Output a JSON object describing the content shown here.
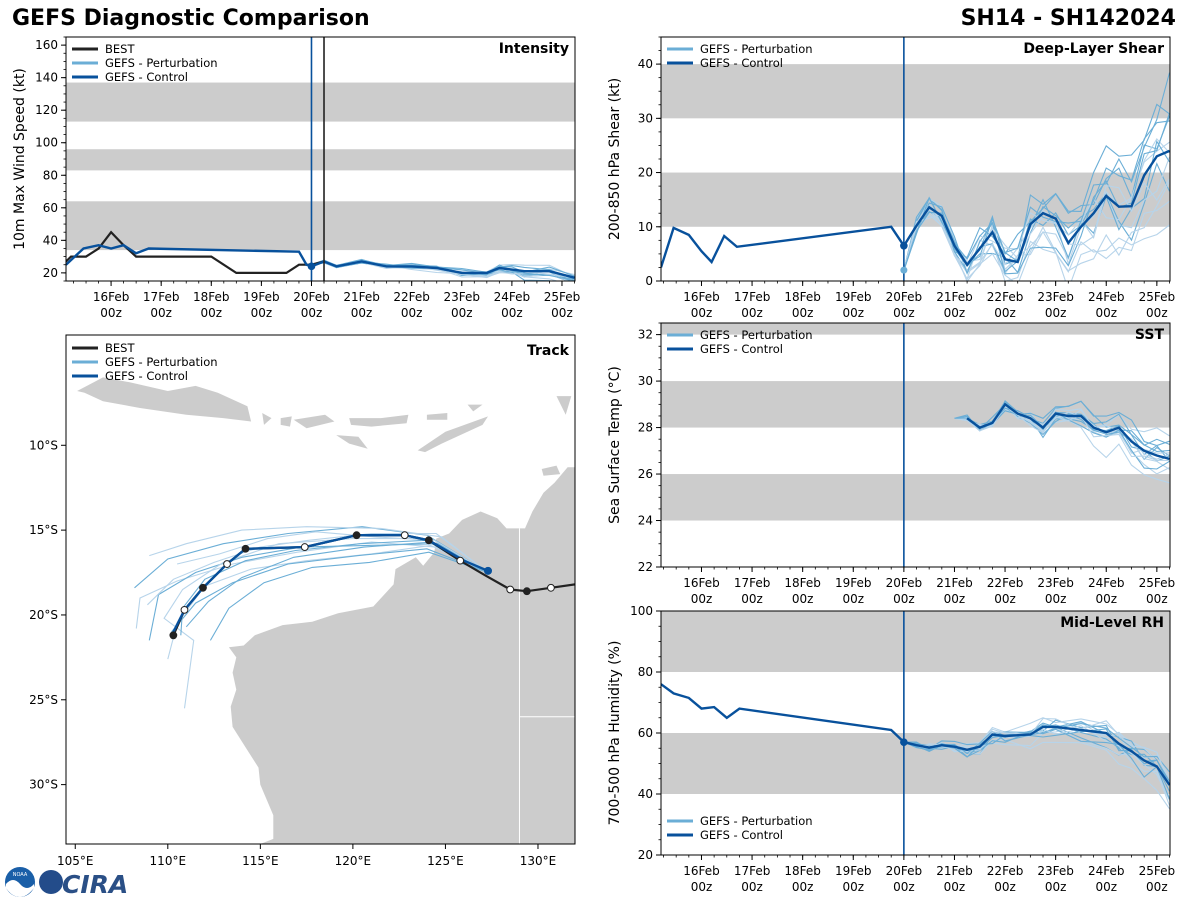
{
  "header": {
    "title_left": "GEFS Diagnostic Comparison",
    "title_right": "SH14 - SH142024"
  },
  "logos": {
    "noaa": "NOAA",
    "cira": "CIRA"
  },
  "colors": {
    "best": "#222222",
    "perturbation": "#6baed6",
    "perturbation_faint": "#b7d4ea",
    "control": "#08519c",
    "band": "#cccccc",
    "land": "#cccccc"
  },
  "time_axis": {
    "dates": [
      "16Feb",
      "17Feb",
      "18Feb",
      "19Feb",
      "20Feb",
      "21Feb",
      "22Feb",
      "23Feb",
      "24Feb",
      "25Feb"
    ],
    "hour_label": "00z"
  },
  "legend": {
    "best": "BEST",
    "perturbation": "GEFS - Perturbation",
    "control": "GEFS - Control"
  },
  "chart_data": [
    {
      "id": "intensity",
      "type": "line",
      "title": "Intensity",
      "ylabel": "10m Max Wind Speed (kt)",
      "ylim": [
        15,
        165
      ],
      "yticks": [
        20,
        40,
        60,
        80,
        100,
        120,
        140,
        160
      ],
      "bands": [
        [
          34,
          64
        ],
        [
          83,
          96
        ],
        [
          113,
          137
        ]
      ],
      "t_range": [
        -0.9,
        9.26
      ],
      "analysis_time": 4.0,
      "best_time": 4.25,
      "best": [
        [
          -0.9,
          27
        ],
        [
          -0.8,
          30
        ],
        [
          -0.5,
          30
        ],
        [
          -0.25,
          35
        ],
        [
          0.0,
          45
        ],
        [
          0.25,
          37
        ],
        [
          0.5,
          30
        ],
        [
          1.0,
          30
        ],
        [
          2.0,
          30
        ],
        [
          2.5,
          20
        ],
        [
          3.0,
          20
        ],
        [
          3.5,
          20
        ],
        [
          3.75,
          25
        ],
        [
          4.0,
          25
        ],
        [
          4.25,
          27
        ]
      ],
      "control": [
        [
          -0.9,
          25
        ],
        [
          -0.55,
          35
        ],
        [
          -0.25,
          37
        ],
        [
          0.0,
          35
        ],
        [
          0.25,
          37
        ],
        [
          0.5,
          32
        ],
        [
          0.75,
          35
        ],
        [
          3.75,
          33
        ],
        [
          3.9,
          25
        ],
        [
          4.0,
          24
        ],
        [
          4.25,
          27
        ],
        [
          4.5,
          24
        ],
        [
          5.0,
          27
        ],
        [
          5.5,
          24
        ],
        [
          6.0,
          24
        ],
        [
          6.5,
          23
        ],
        [
          7.0,
          20
        ],
        [
          7.5,
          20
        ],
        [
          7.75,
          23
        ],
        [
          8.0,
          22
        ],
        [
          8.25,
          21
        ],
        [
          8.75,
          21
        ],
        [
          9.25,
          17
        ]
      ],
      "perturbation_start": 4.0,
      "perturbation_start_value": 25,
      "perturbation_spread": 3
    },
    {
      "id": "shear",
      "type": "line",
      "title": "Deep-Layer Shear",
      "ylabel": "200-850 hPa Shear (kt)",
      "ylim": [
        0,
        45
      ],
      "yticks": [
        0,
        10,
        20,
        30,
        40
      ],
      "bands": [
        [
          10,
          20
        ],
        [
          30,
          40
        ]
      ],
      "t_range": [
        -0.8,
        9.26
      ],
      "analysis_time": 4.0,
      "control": [
        [
          -0.8,
          2.5
        ],
        [
          -0.55,
          9.8
        ],
        [
          -0.25,
          8.5
        ],
        [
          0.0,
          5.5
        ],
        [
          0.2,
          3.5
        ],
        [
          0.45,
          8.3
        ],
        [
          0.7,
          6.3
        ],
        [
          3.75,
          10
        ],
        [
          4.0,
          6.5
        ],
        [
          4.25,
          10.2
        ],
        [
          4.5,
          13.6
        ],
        [
          4.75,
          12
        ],
        [
          5.0,
          6.5
        ],
        [
          5.25,
          3
        ],
        [
          5.5,
          6
        ],
        [
          5.75,
          9
        ],
        [
          6.0,
          4
        ],
        [
          6.25,
          3.5
        ],
        [
          6.5,
          10.5
        ],
        [
          6.75,
          12.5
        ],
        [
          7.0,
          11.5
        ],
        [
          7.25,
          7
        ],
        [
          7.5,
          10
        ],
        [
          7.75,
          12.5
        ],
        [
          8.0,
          15.7
        ],
        [
          8.25,
          13.7
        ],
        [
          8.5,
          13.8
        ],
        [
          8.75,
          19.5
        ],
        [
          9.0,
          23
        ],
        [
          9.25,
          24
        ]
      ],
      "perturbation_start": 4.0,
      "perturbation_start_value": 2,
      "perturbation_spread": 6
    },
    {
      "id": "sst",
      "type": "line",
      "title": "SST",
      "ylabel": "Sea Surface Temp (°C)",
      "ylim": [
        22,
        32.5
      ],
      "yticks": [
        22,
        24,
        26,
        28,
        30,
        32
      ],
      "bands": [
        [
          24,
          26
        ],
        [
          28,
          30
        ],
        [
          32,
          32.5
        ]
      ],
      "t_range": [
        -0.8,
        9.26
      ],
      "analysis_time": 4.0,
      "control": [
        [
          5.25,
          28.4
        ],
        [
          5.5,
          28.0
        ],
        [
          5.75,
          28.2
        ],
        [
          6.0,
          29.0
        ],
        [
          6.25,
          28.6
        ],
        [
          6.5,
          28.4
        ],
        [
          6.75,
          28.0
        ],
        [
          7.0,
          28.6
        ],
        [
          7.25,
          28.5
        ],
        [
          7.5,
          28.5
        ],
        [
          7.75,
          28.0
        ],
        [
          8.0,
          27.8
        ],
        [
          8.25,
          28.0
        ],
        [
          8.5,
          27.4
        ],
        [
          8.75,
          27.0
        ],
        [
          9.0,
          26.8
        ],
        [
          9.25,
          26.65
        ]
      ],
      "perturbation_start": 5.0,
      "perturbation_start_value": 28.4,
      "perturbation_spread": 0.5
    },
    {
      "id": "rh",
      "type": "line",
      "title": "Mid-Level RH",
      "ylabel": "700-500 hPa Humidity (%)",
      "ylim": [
        20,
        100
      ],
      "yticks": [
        20,
        40,
        60,
        80,
        100
      ],
      "bands": [
        [
          40,
          60
        ],
        [
          80,
          100
        ]
      ],
      "t_range": [
        -0.8,
        9.26
      ],
      "analysis_time": 4.0,
      "control": [
        [
          -0.8,
          76
        ],
        [
          -0.55,
          73
        ],
        [
          -0.25,
          71.5
        ],
        [
          0.0,
          68
        ],
        [
          0.25,
          68.5
        ],
        [
          0.5,
          65
        ],
        [
          0.75,
          68
        ],
        [
          3.75,
          61
        ],
        [
          4.0,
          57
        ],
        [
          4.25,
          56
        ],
        [
          4.5,
          55.2
        ],
        [
          4.75,
          56
        ],
        [
          5.0,
          55.5
        ],
        [
          5.25,
          54.5
        ],
        [
          5.5,
          55.5
        ],
        [
          5.75,
          59.5
        ],
        [
          6.0,
          59
        ],
        [
          6.5,
          59.5
        ],
        [
          6.75,
          62
        ],
        [
          7.0,
          62
        ],
        [
          7.5,
          61
        ],
        [
          8.0,
          60
        ],
        [
          8.25,
          56.5
        ],
        [
          8.5,
          54
        ],
        [
          8.75,
          51
        ],
        [
          9.0,
          49
        ],
        [
          9.25,
          43
        ]
      ],
      "perturbation_start": 4.0,
      "perturbation_start_value": 57,
      "perturbation_spread": 4
    },
    {
      "id": "track",
      "type": "scatter",
      "title": "Track",
      "lon_range": [
        104.5,
        132
      ],
      "lat_range": [
        -33.5,
        -3.5
      ],
      "xticks": [
        105,
        110,
        115,
        120,
        125,
        130
      ],
      "xtick_labels": [
        "105°E",
        "110°E",
        "115°E",
        "120°E",
        "125°E",
        "130°E"
      ],
      "yticks": [
        -10,
        -15,
        -20,
        -25,
        -30
      ],
      "ytick_labels": [
        "10°S",
        "15°S",
        "20°S",
        "25°S",
        "30°S"
      ],
      "best": [
        [
          132.0,
          -18.2
        ],
        [
          130.7,
          -18.4
        ],
        [
          129.4,
          -18.6
        ],
        [
          128.5,
          -18.5
        ],
        [
          127.2,
          -17.7
        ],
        [
          125.8,
          -16.8
        ],
        [
          124.1,
          -15.6
        ],
        [
          122.8,
          -15.3
        ],
        [
          120.2,
          -15.3
        ],
        [
          117.4,
          -16.0
        ],
        [
          114.2,
          -16.1
        ],
        [
          113.2,
          -17.0
        ],
        [
          111.9,
          -18.4
        ],
        [
          110.9,
          -19.7
        ],
        [
          110.3,
          -21.2
        ]
      ],
      "best_markers": [
        [
          130.7,
          -18.4,
          "open"
        ],
        [
          129.4,
          -18.6,
          "filled"
        ],
        [
          128.5,
          -18.5,
          "open"
        ],
        [
          125.8,
          -16.8,
          "open"
        ],
        [
          124.1,
          -15.6,
          "filled"
        ],
        [
          122.8,
          -15.3,
          "open"
        ],
        [
          120.2,
          -15.3,
          "filled"
        ],
        [
          117.4,
          -16.0,
          "open"
        ],
        [
          114.2,
          -16.1,
          "filled"
        ],
        [
          113.2,
          -17.0,
          "open"
        ],
        [
          111.9,
          -18.4,
          "filled"
        ],
        [
          110.9,
          -19.7,
          "open"
        ],
        [
          110.3,
          -21.2,
          "filled"
        ]
      ],
      "control": [
        [
          127.3,
          -17.4
        ],
        [
          126.0,
          -16.8
        ],
        [
          124.1,
          -15.6
        ],
        [
          122.8,
          -15.3
        ],
        [
          120.2,
          -15.3
        ],
        [
          117.4,
          -16.0
        ],
        [
          114.2,
          -16.1
        ],
        [
          113.2,
          -17.0
        ],
        [
          111.9,
          -18.4
        ],
        [
          110.9,
          -19.7
        ],
        [
          110.3,
          -21.0
        ]
      ],
      "perturbation_tracks": [
        [
          [
            127.3,
            -17.5
          ],
          [
            124.5,
            -16.0
          ],
          [
            121.0,
            -15.7
          ],
          [
            117.0,
            -16.3
          ],
          [
            113.5,
            -17.0
          ],
          [
            110.5,
            -18.0
          ],
          [
            108.5,
            -19.0
          ],
          [
            108.3,
            -20.8
          ]
        ],
        [
          [
            127.3,
            -17.5
          ],
          [
            124.0,
            -15.3
          ],
          [
            120.5,
            -14.8
          ],
          [
            116.5,
            -15.2
          ],
          [
            113.0,
            -15.8
          ],
          [
            110.0,
            -16.7
          ],
          [
            108.2,
            -18.4
          ]
        ],
        [
          [
            127.3,
            -17.5
          ],
          [
            124.2,
            -15.9
          ],
          [
            121.0,
            -16.4
          ],
          [
            117.5,
            -16.8
          ],
          [
            114.5,
            -17.3
          ],
          [
            112.0,
            -18.3
          ],
          [
            110.5,
            -20.5
          ],
          [
            110.0,
            -22.6
          ]
        ],
        [
          [
            127.3,
            -17.5
          ],
          [
            124.6,
            -15.8
          ],
          [
            120.8,
            -15.9
          ],
          [
            117.2,
            -16.0
          ],
          [
            114.0,
            -16.6
          ],
          [
            111.5,
            -17.5
          ],
          [
            109.5,
            -18.8
          ],
          [
            109.0,
            -21.5
          ]
        ],
        [
          [
            127.3,
            -17.5
          ],
          [
            123.8,
            -15.5
          ],
          [
            120.0,
            -15.5
          ],
          [
            116.0,
            -15.8
          ],
          [
            113.0,
            -16.9
          ],
          [
            110.8,
            -18.5
          ],
          [
            109.8,
            -20.2
          ],
          [
            111.4,
            -21.5
          ],
          [
            110.9,
            -25.5
          ]
        ],
        [
          [
            127.3,
            -17.5
          ],
          [
            124.3,
            -15.7
          ],
          [
            120.6,
            -16.0
          ],
          [
            116.8,
            -16.6
          ],
          [
            114.0,
            -17.8
          ],
          [
            112.2,
            -19.2
          ],
          [
            111.0,
            -20.7
          ]
        ],
        [
          [
            127.3,
            -17.5
          ],
          [
            124.8,
            -15.4
          ],
          [
            121.5,
            -14.9
          ],
          [
            117.5,
            -14.8
          ],
          [
            114.0,
            -15.0
          ],
          [
            111.0,
            -15.8
          ],
          [
            109.0,
            -16.5
          ]
        ],
        [
          [
            127.3,
            -17.5
          ],
          [
            124.0,
            -16.1
          ],
          [
            120.3,
            -16.5
          ],
          [
            116.5,
            -17.0
          ],
          [
            113.5,
            -18.1
          ],
          [
            111.5,
            -19.3
          ],
          [
            110.2,
            -21.0
          ]
        ],
        [
          [
            127.3,
            -17.5
          ],
          [
            124.5,
            -15.2
          ],
          [
            121.0,
            -15.2
          ],
          [
            117.6,
            -15.6
          ],
          [
            115.0,
            -16.0
          ],
          [
            112.5,
            -16.9
          ],
          [
            110.3,
            -17.9
          ],
          [
            108.9,
            -19.4
          ]
        ],
        [
          [
            127.3,
            -17.5
          ],
          [
            124.1,
            -16.3
          ],
          [
            120.9,
            -16.9
          ],
          [
            117.8,
            -17.2
          ],
          [
            115.2,
            -18.1
          ],
          [
            113.3,
            -19.6
          ],
          [
            112.3,
            -21.5
          ]
        ],
        [
          [
            127.3,
            -17.5
          ],
          [
            124.4,
            -15.6
          ],
          [
            121.2,
            -15.4
          ],
          [
            118.0,
            -15.1
          ],
          [
            115.4,
            -15.5
          ],
          [
            112.8,
            -16.4
          ],
          [
            110.5,
            -17.0
          ]
        ],
        [
          [
            127.3,
            -17.5
          ],
          [
            123.9,
            -15.6
          ],
          [
            120.4,
            -15.8
          ],
          [
            116.9,
            -16.2
          ],
          [
            114.2,
            -16.8
          ],
          [
            112.0,
            -17.9
          ],
          [
            110.8,
            -19.6
          ],
          [
            110.7,
            -21.2
          ]
        ]
      ]
    }
  ]
}
